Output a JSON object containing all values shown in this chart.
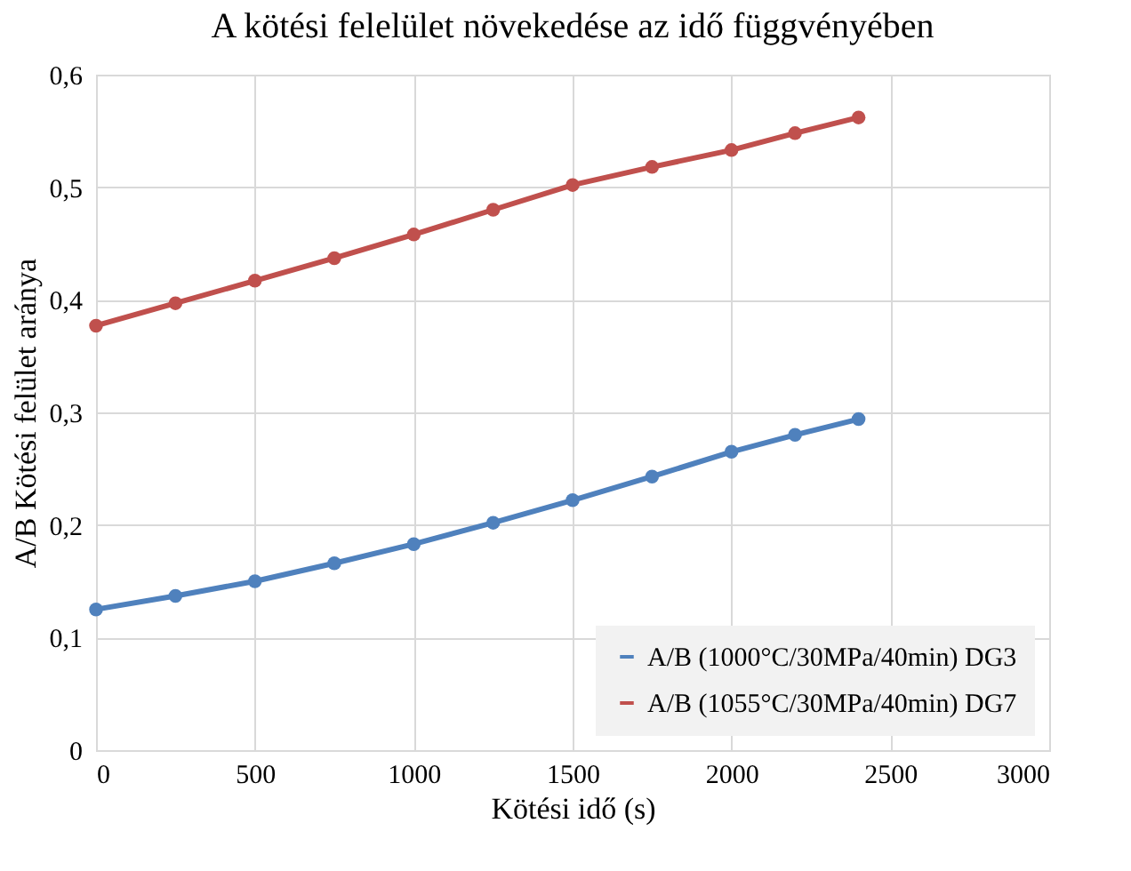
{
  "chart_data": {
    "type": "line",
    "title": "A kötési felelület növekedése az idő függvényében",
    "xlabel": "Kötési idő (s)",
    "ylabel": "A/B Kötési felület aránya",
    "x": [
      0,
      250,
      500,
      750,
      1000,
      1250,
      1500,
      1750,
      2000,
      2200,
      2400
    ],
    "series": [
      {
        "name": "A/B (1000°C/30MPa/40min) DG3",
        "color": "#4f81bd",
        "values": [
          0.125,
          0.137,
          0.15,
          0.166,
          0.183,
          0.202,
          0.222,
          0.243,
          0.265,
          0.28,
          0.294
        ]
      },
      {
        "name": "A/B (1055°C/30MPa/40min) DG7",
        "color": "#c0504d",
        "values": [
          0.377,
          0.397,
          0.417,
          0.437,
          0.458,
          0.48,
          0.502,
          0.518,
          0.533,
          0.548,
          0.562
        ]
      }
    ],
    "xlim": [
      0,
      3000
    ],
    "xticks": [
      0,
      500,
      1000,
      1500,
      2000,
      2500,
      3000
    ],
    "ylim": [
      0,
      0.6
    ],
    "yticks": [
      0,
      {
        "value": 0.1,
        "label": "0,1"
      },
      {
        "value": 0.2,
        "label": "0,2"
      },
      {
        "value": 0.3,
        "label": "0,3"
      },
      {
        "value": 0.4,
        "label": "0,4"
      },
      {
        "value": 0.5,
        "label": "0,5"
      },
      {
        "value": 0.6,
        "label": "0,6"
      }
    ],
    "grid": true,
    "legend": "bottom right",
    "marker": "circle",
    "line_style": "solid"
  }
}
